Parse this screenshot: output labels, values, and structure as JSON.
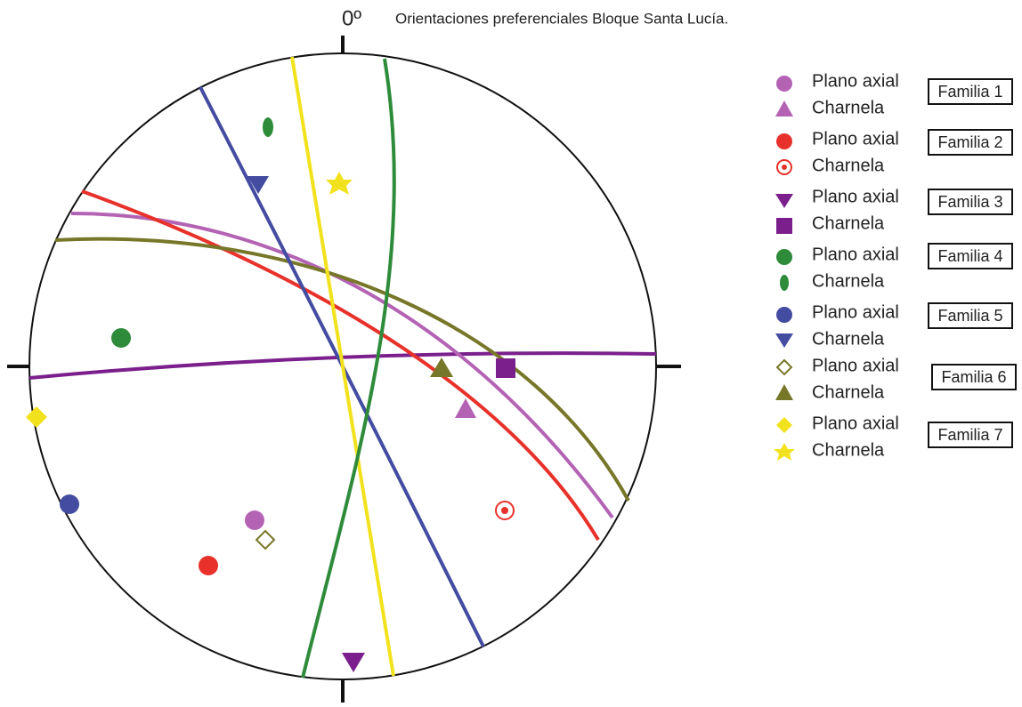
{
  "north_label": "0º",
  "title": "Orientaciones preferenciales Bloque Santa Lucía.",
  "legend": [
    {
      "family": "Familia 1",
      "items": [
        "Plano axial",
        "Charnela"
      ]
    },
    {
      "family": "Familia 2",
      "items": [
        "Plano axial",
        "Charnela"
      ]
    },
    {
      "family": "Familia 3",
      "items": [
        "Plano axial",
        "Charnela"
      ]
    },
    {
      "family": "Familia 4",
      "items": [
        "Plano axial",
        "Charnela"
      ]
    },
    {
      "family": "Familia 5",
      "items": [
        "Plano axial",
        "Charnela"
      ]
    },
    {
      "family": "Familia 6",
      "items": [
        "Plano axial",
        "Charnela"
      ]
    },
    {
      "family": "Familia 7",
      "items": [
        "Plano axial",
        "Charnela"
      ]
    }
  ]
}
